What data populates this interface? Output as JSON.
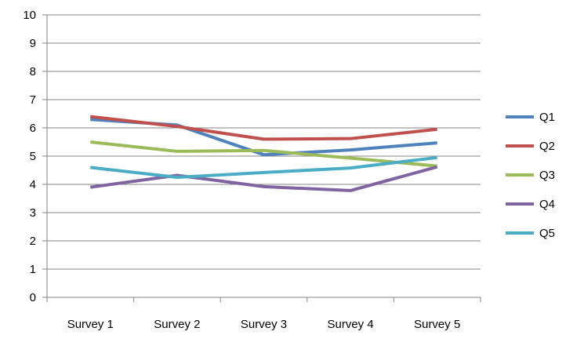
{
  "chart_data": {
    "type": "line",
    "title": "",
    "xlabel": "",
    "ylabel": "",
    "categories": [
      "Survey 1",
      "Survey 2",
      "Survey 3",
      "Survey 4",
      "Survey 5"
    ],
    "ylim": [
      0,
      10
    ],
    "yticks": [
      "0",
      "1",
      "2",
      "3",
      "4",
      "5",
      "6",
      "7",
      "8",
      "9",
      "10"
    ],
    "grid": true,
    "legend_position": "right",
    "series": [
      {
        "name": "Q1",
        "color": "#4f81bd",
        "values": [
          6.3,
          6.1,
          5.05,
          5.22,
          5.47
        ]
      },
      {
        "name": "Q2",
        "color": "#c0504d",
        "values": [
          6.4,
          6.05,
          5.6,
          5.62,
          5.95
        ]
      },
      {
        "name": "Q3",
        "color": "#9bbb59",
        "values": [
          5.5,
          5.17,
          5.2,
          4.93,
          4.65
        ]
      },
      {
        "name": "Q4",
        "color": "#8064a2",
        "values": [
          3.9,
          4.32,
          3.92,
          3.78,
          4.62
        ]
      },
      {
        "name": "Q5",
        "color": "#4bacc6",
        "values": [
          4.6,
          4.25,
          4.42,
          4.58,
          4.95
        ]
      }
    ]
  }
}
